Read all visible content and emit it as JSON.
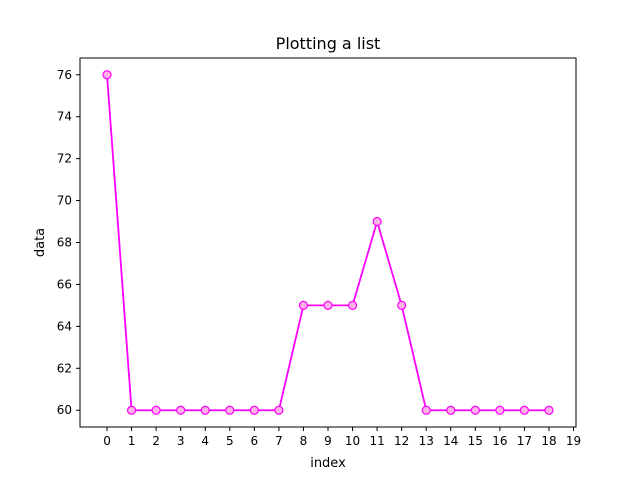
{
  "chart_data": {
    "type": "line",
    "title": "Plotting a list",
    "xlabel": "index",
    "ylabel": "data",
    "xlim": [
      -1.1,
      19.1
    ],
    "ylim": [
      59.2,
      76.8
    ],
    "xticks": [
      0,
      1,
      2,
      3,
      4,
      5,
      6,
      7,
      8,
      9,
      10,
      11,
      12,
      13,
      14,
      15,
      16,
      17,
      18,
      19
    ],
    "yticks": [
      60,
      62,
      64,
      66,
      68,
      70,
      72,
      74,
      76
    ],
    "grid": false,
    "series": [
      {
        "x": [
          0,
          1,
          2,
          3,
          4,
          5,
          6,
          7,
          8,
          9,
          10,
          11,
          12,
          13,
          14,
          15,
          16,
          17,
          18
        ],
        "values": [
          76,
          60,
          60,
          60,
          60,
          60,
          60,
          60,
          65,
          65,
          65,
          69,
          65,
          60,
          60,
          60,
          60,
          60,
          60
        ],
        "line_color": "#ff00ff",
        "marker": "circle",
        "marker_fill": "#ffb3e6",
        "marker_edge": "#ff00ff"
      }
    ]
  }
}
